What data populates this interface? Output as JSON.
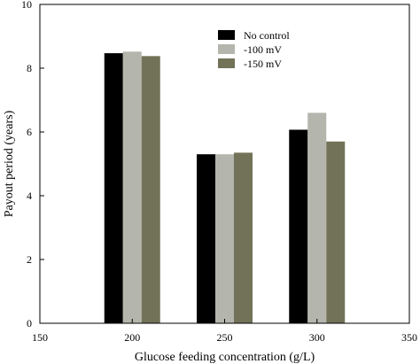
{
  "chart_data": {
    "type": "bar",
    "xlabel": "Glucose feeding concentration (g/L)",
    "ylabel": "Payout period (years)",
    "xlim": [
      150,
      350
    ],
    "ylim": [
      0,
      10
    ],
    "x_ticks": [
      150,
      200,
      250,
      300,
      350
    ],
    "y_ticks": [
      0,
      2,
      4,
      6,
      8,
      10
    ],
    "categories": [
      200,
      250,
      300
    ],
    "legend_position": "top-center",
    "series": [
      {
        "name": "No control",
        "color": "#000000",
        "values": [
          8.47,
          5.3,
          6.07
        ]
      },
      {
        "name": "-100 mV",
        "color": "#b4b5ac",
        "values": [
          8.52,
          5.3,
          6.6
        ]
      },
      {
        "name": "-150 mV",
        "color": "#727258",
        "values": [
          8.38,
          5.35,
          5.7
        ]
      }
    ]
  }
}
